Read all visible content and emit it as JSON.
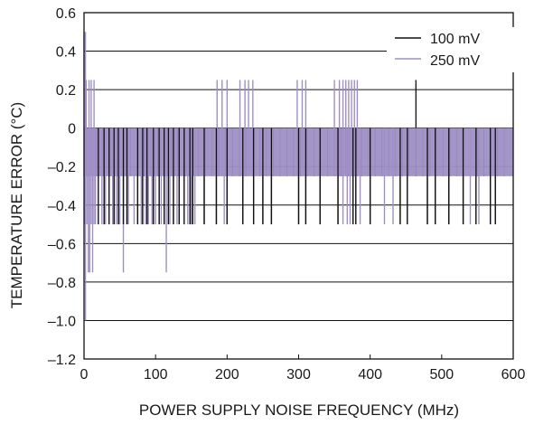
{
  "chart_data": {
    "type": "line",
    "title": "",
    "xlabel": "POWER SUPPLY NOISE FREQUENCY (MHz)",
    "ylabel": "TEMPERATURE ERROR (°C)",
    "xlim": [
      0,
      600
    ],
    "ylim": [
      -1.2,
      0.6
    ],
    "x_ticks": [
      0,
      100,
      200,
      300,
      400,
      500,
      600
    ],
    "x_tick_labels": [
      "0",
      "100",
      "200",
      "300",
      "400",
      "500",
      "600"
    ],
    "y_ticks": [
      0.6,
      0.4,
      0.2,
      0,
      -0.2,
      -0.4,
      -0.6,
      -0.8,
      -1.0,
      -1.2
    ],
    "y_tick_labels": [
      "0.6",
      "0.4",
      "0.2",
      "0",
      "–0.2",
      "–0.4",
      "–0.6",
      "–0.8",
      "–1.0",
      "–1.2"
    ],
    "grid": "horizontal",
    "legend_position": "top-right",
    "series": [
      {
        "name": "100 mV",
        "color": "#111111",
        "band": [
          -0.25,
          0.0
        ],
        "spikes_down": [
          [
            20,
            -0.5
          ],
          [
            28,
            -0.5
          ],
          [
            35,
            -0.5
          ],
          [
            42,
            -0.5
          ],
          [
            48,
            -0.5
          ],
          [
            55,
            -0.5
          ],
          [
            60,
            -0.5
          ],
          [
            75,
            -0.5
          ],
          [
            82,
            -0.5
          ],
          [
            88,
            -0.5
          ],
          [
            97,
            -0.5
          ],
          [
            105,
            -0.5
          ],
          [
            112,
            -0.5
          ],
          [
            118,
            -0.5
          ],
          [
            125,
            -0.5
          ],
          [
            133,
            -0.5
          ],
          [
            140,
            -0.5
          ],
          [
            148,
            -0.5
          ],
          [
            152,
            -0.5
          ],
          [
            168,
            -0.5
          ],
          [
            185,
            -0.5
          ],
          [
            200,
            -0.5
          ],
          [
            222,
            -0.5
          ],
          [
            237,
            -0.5
          ],
          [
            250,
            -0.5
          ],
          [
            262,
            -0.5
          ],
          [
            300,
            -0.5
          ],
          [
            310,
            -0.5
          ],
          [
            330,
            -0.5
          ],
          [
            355,
            -0.5
          ],
          [
            376,
            -0.5
          ],
          [
            380,
            -0.5
          ],
          [
            400,
            -0.5
          ],
          [
            442,
            -0.5
          ],
          [
            452,
            -0.5
          ],
          [
            480,
            -0.5
          ],
          [
            491,
            -0.5
          ],
          [
            510,
            -0.5
          ],
          [
            530,
            -0.5
          ],
          [
            548,
            -0.5
          ],
          [
            568,
            -0.5
          ],
          [
            575,
            -0.5
          ]
        ],
        "spikes_up": [
          [
            464,
            0.25
          ]
        ]
      },
      {
        "name": "250 mV",
        "color": "#9f8fc6",
        "band": [
          -0.25,
          0.0
        ],
        "spikes_up": [
          [
            0,
            0.5
          ],
          [
            2,
            0.5
          ],
          [
            3,
            0.25
          ],
          [
            7,
            0.25
          ],
          [
            10,
            0.25
          ],
          [
            14,
            0.25
          ],
          [
            186,
            0.25
          ],
          [
            193,
            0.25
          ],
          [
            200,
            0.25
          ],
          [
            218,
            0.25
          ],
          [
            225,
            0.25
          ],
          [
            230,
            0.25
          ],
          [
            236,
            0.25
          ],
          [
            298,
            0.25
          ],
          [
            305,
            0.25
          ],
          [
            310,
            0.25
          ],
          [
            350,
            0.25
          ],
          [
            357,
            0.25
          ],
          [
            362,
            0.25
          ],
          [
            366,
            0.25
          ],
          [
            370,
            0.25
          ],
          [
            374,
            0.25
          ],
          [
            378,
            0.25
          ],
          [
            382,
            0.25
          ]
        ],
        "spikes_down": [
          [
            1,
            -0.5
          ],
          [
            2,
            -1.0
          ],
          [
            4,
            -0.5
          ],
          [
            6,
            -0.75
          ],
          [
            8,
            -0.75
          ],
          [
            10,
            -0.5
          ],
          [
            12,
            -0.75
          ],
          [
            14,
            -0.5
          ],
          [
            16,
            -0.5
          ],
          [
            20,
            -0.5
          ],
          [
            25,
            -0.5
          ],
          [
            30,
            -0.5
          ],
          [
            35,
            -0.5
          ],
          [
            40,
            -0.5
          ],
          [
            45,
            -0.5
          ],
          [
            50,
            -0.5
          ],
          [
            55,
            -0.75
          ],
          [
            62,
            -0.5
          ],
          [
            70,
            -0.5
          ],
          [
            80,
            -0.5
          ],
          [
            86,
            -0.5
          ],
          [
            90,
            -0.5
          ],
          [
            95,
            -0.5
          ],
          [
            100,
            -0.5
          ],
          [
            108,
            -0.5
          ],
          [
            115,
            -0.75
          ],
          [
            120,
            -0.5
          ],
          [
            130,
            -0.5
          ],
          [
            140,
            -0.5
          ],
          [
            145,
            -0.5
          ],
          [
            150,
            -0.5
          ],
          [
            155,
            -0.5
          ],
          [
            196,
            -0.5
          ],
          [
            362,
            -0.5
          ],
          [
            368,
            -0.5
          ],
          [
            372,
            -0.5
          ],
          [
            386,
            -0.5
          ],
          [
            420,
            -0.5
          ],
          [
            432,
            -0.5
          ],
          [
            540,
            -0.5
          ],
          [
            552,
            -0.5
          ]
        ]
      }
    ]
  }
}
